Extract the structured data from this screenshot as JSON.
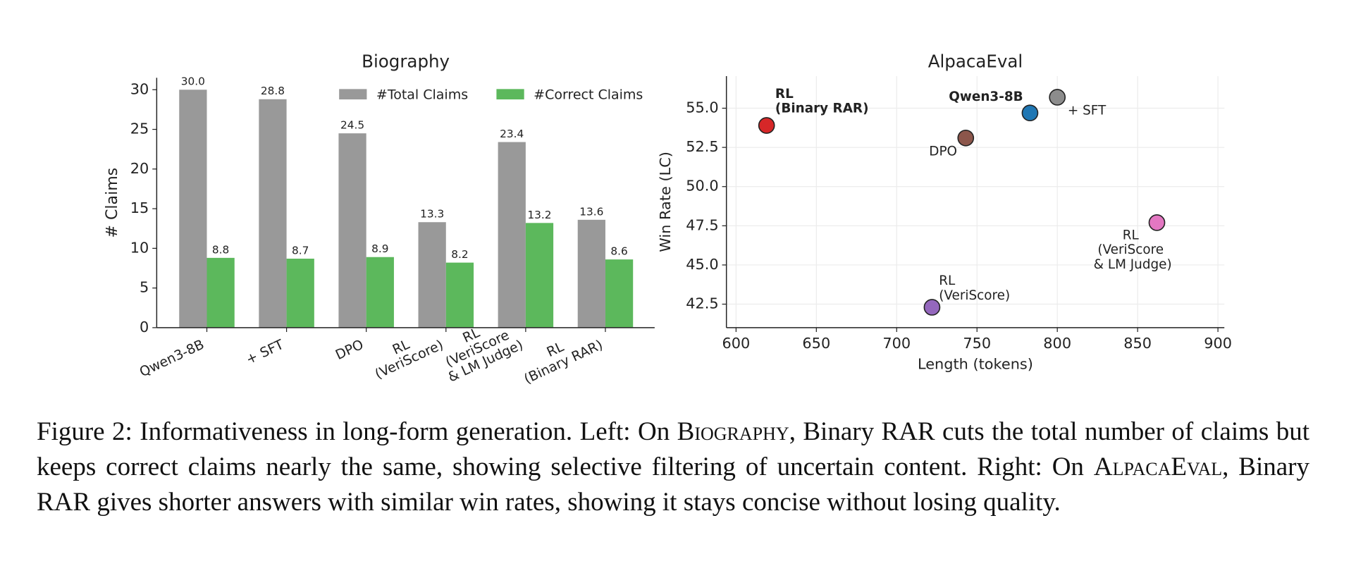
{
  "chart_data": [
    {
      "type": "bar",
      "title": "Biography",
      "ylabel": "# Claims",
      "categories": [
        "Qwen3-8B",
        "+ SFT",
        "DPO",
        "RL\n(VeriScore)",
        "RL\n(VeriScore\n& LM Judge)",
        "RL\n(Binary RAR)"
      ],
      "series": [
        {
          "name": "#Total Claims",
          "color": "#999999",
          "values": [
            30.0,
            28.8,
            24.5,
            13.3,
            23.4,
            13.6
          ],
          "value_labels": [
            "30.0",
            "28.8",
            "24.5",
            "13.3",
            "23.4",
            "13.6"
          ]
        },
        {
          "name": "#Correct Claims",
          "color": "#5cb85c",
          "values": [
            8.8,
            8.7,
            8.9,
            8.2,
            13.2,
            8.6
          ],
          "value_labels": [
            "8.8",
            "8.7",
            "8.9",
            "8.2",
            "13.2",
            "8.6"
          ]
        }
      ],
      "ylim": [
        0,
        31.5
      ],
      "yticks": [
        0,
        5,
        10,
        15,
        20,
        25,
        30
      ],
      "legend": "upper right"
    },
    {
      "type": "scatter",
      "title": "AlpacaEval",
      "xlabel": "Length (tokens)",
      "ylabel": "Win Rate (LC)",
      "points": [
        {
          "label": "RL\n(Binary RAR)",
          "x": 619,
          "y": 53.9,
          "color": "#d62728",
          "bold": true
        },
        {
          "label": "Qwen3-8B",
          "x": 783,
          "y": 54.7,
          "color": "#1f77b4",
          "bold": true
        },
        {
          "label": "+ SFT",
          "x": 800,
          "y": 55.7,
          "color": "#8c8c8c",
          "bold": false
        },
        {
          "label": "DPO",
          "x": 743,
          "y": 53.1,
          "color": "#8c564b",
          "bold": false
        },
        {
          "label": "RL\n(VeriScore\n& LM Judge)",
          "x": 862,
          "y": 47.7,
          "color": "#e377c2",
          "bold": false
        },
        {
          "label": "RL\n(VeriScore)",
          "x": 722,
          "y": 42.3,
          "color": "#9467bd",
          "bold": false
        }
      ],
      "xlim": [
        594,
        904
      ],
      "xticks": [
        600,
        650,
        700,
        750,
        800,
        850,
        900
      ],
      "ylim": [
        41,
        57.05
      ],
      "yticks": [
        42.5,
        {
          "value": 45,
          "label": "45.0"
        },
        47.5,
        {
          "value": 50,
          "label": "50.0"
        },
        52.5,
        {
          "value": 55,
          "label": "55.0"
        }
      ],
      "grid": true
    }
  ],
  "caption": [
    "Figure 2: Informativeness in long-form generation. Left: On ",
    "Biography",
    ", Binary RAR cuts the total number of claims but keeps correct claims nearly the same, showing selective filtering of uncertain content. Right: On ",
    "AlpacaEval",
    ", Binary RAR gives shorter answers with similar win rates, showing it stays concise without losing quality."
  ]
}
